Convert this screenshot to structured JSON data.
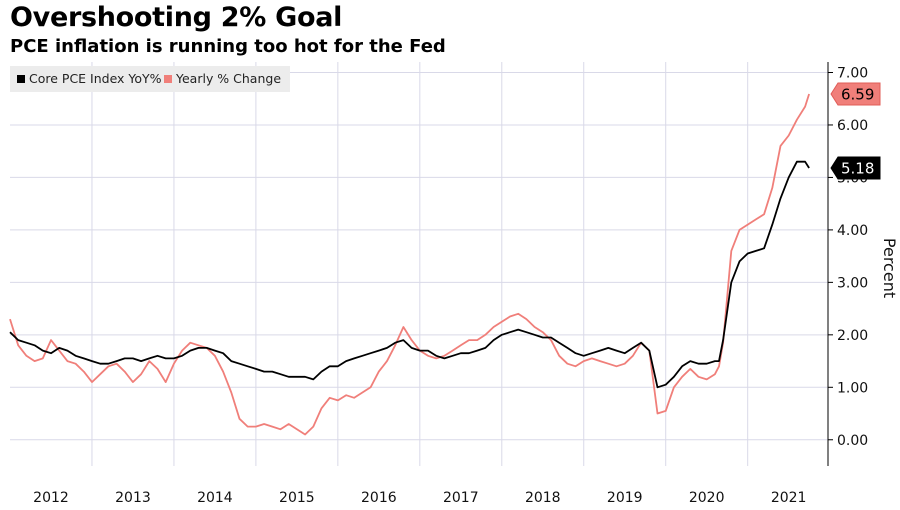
{
  "title": "Overshooting 2% Goal",
  "subtitle": "PCE inflation is running too hot for the Fed",
  "colors": {
    "core": "#000000",
    "yearly": "#f07f7a",
    "grid": "#d9d9e8",
    "legend_bg": "#ececec"
  },
  "chart_data": {
    "type": "line",
    "ylabel": "Percent",
    "ylim": [
      -0.5,
      7.2
    ],
    "yticks": [
      0,
      1,
      2,
      3,
      4,
      5,
      6,
      7
    ],
    "ytick_labels": [
      "0.00",
      "1.00",
      "2.00",
      "3.00",
      "4.00",
      "5.00",
      "6.00",
      "7.00"
    ],
    "xlim": [
      2012,
      2021.98
    ],
    "x_ticks": [
      2012,
      2013,
      2014,
      2015,
      2016,
      2017,
      2018,
      2019,
      2020,
      2021
    ],
    "x_tick_labels": [
      "2012",
      "2013",
      "2014",
      "2015",
      "2016",
      "2017",
      "2018",
      "2019",
      "2020",
      "2021"
    ],
    "legend_position": "top-left",
    "grid": true,
    "series": [
      {
        "name": "Core PCE Index YoY%",
        "last_label": "5.18",
        "points": [
          [
            2012.0,
            2.05
          ],
          [
            2012.1,
            1.9
          ],
          [
            2012.2,
            1.85
          ],
          [
            2012.3,
            1.8
          ],
          [
            2012.4,
            1.7
          ],
          [
            2012.5,
            1.65
          ],
          [
            2012.6,
            1.75
          ],
          [
            2012.7,
            1.7
          ],
          [
            2012.8,
            1.6
          ],
          [
            2012.9,
            1.55
          ],
          [
            2013.0,
            1.5
          ],
          [
            2013.1,
            1.45
          ],
          [
            2013.2,
            1.45
          ],
          [
            2013.3,
            1.5
          ],
          [
            2013.4,
            1.55
          ],
          [
            2013.5,
            1.55
          ],
          [
            2013.6,
            1.5
          ],
          [
            2013.7,
            1.55
          ],
          [
            2013.8,
            1.6
          ],
          [
            2013.9,
            1.55
          ],
          [
            2014.0,
            1.55
          ],
          [
            2014.1,
            1.6
          ],
          [
            2014.2,
            1.7
          ],
          [
            2014.3,
            1.75
          ],
          [
            2014.4,
            1.75
          ],
          [
            2014.5,
            1.7
          ],
          [
            2014.6,
            1.65
          ],
          [
            2014.7,
            1.5
          ],
          [
            2014.8,
            1.45
          ],
          [
            2014.9,
            1.4
          ],
          [
            2015.0,
            1.35
          ],
          [
            2015.1,
            1.3
          ],
          [
            2015.2,
            1.3
          ],
          [
            2015.3,
            1.25
          ],
          [
            2015.4,
            1.2
          ],
          [
            2015.5,
            1.2
          ],
          [
            2015.6,
            1.2
          ],
          [
            2015.7,
            1.15
          ],
          [
            2015.8,
            1.3
          ],
          [
            2015.9,
            1.4
          ],
          [
            2016.0,
            1.4
          ],
          [
            2016.1,
            1.5
          ],
          [
            2016.2,
            1.55
          ],
          [
            2016.3,
            1.6
          ],
          [
            2016.4,
            1.65
          ],
          [
            2016.5,
            1.7
          ],
          [
            2016.6,
            1.75
          ],
          [
            2016.7,
            1.85
          ],
          [
            2016.8,
            1.9
          ],
          [
            2016.9,
            1.75
          ],
          [
            2017.0,
            1.7
          ],
          [
            2017.1,
            1.7
          ],
          [
            2017.2,
            1.6
          ],
          [
            2017.3,
            1.55
          ],
          [
            2017.4,
            1.6
          ],
          [
            2017.5,
            1.65
          ],
          [
            2017.6,
            1.65
          ],
          [
            2017.7,
            1.7
          ],
          [
            2017.8,
            1.75
          ],
          [
            2017.9,
            1.9
          ],
          [
            2018.0,
            2.0
          ],
          [
            2018.1,
            2.05
          ],
          [
            2018.2,
            2.1
          ],
          [
            2018.3,
            2.05
          ],
          [
            2018.4,
            2.0
          ],
          [
            2018.5,
            1.95
          ],
          [
            2018.6,
            1.95
          ],
          [
            2018.7,
            1.85
          ],
          [
            2018.8,
            1.75
          ],
          [
            2018.9,
            1.65
          ],
          [
            2019.0,
            1.6
          ],
          [
            2019.1,
            1.65
          ],
          [
            2019.2,
            1.7
          ],
          [
            2019.3,
            1.75
          ],
          [
            2019.4,
            1.7
          ],
          [
            2019.5,
            1.65
          ],
          [
            2019.6,
            1.75
          ],
          [
            2019.7,
            1.85
          ],
          [
            2019.8,
            1.7
          ],
          [
            2019.9,
            1.0
          ],
          [
            2020.0,
            1.05
          ],
          [
            2020.1,
            1.2
          ],
          [
            2020.2,
            1.4
          ],
          [
            2020.3,
            1.5
          ],
          [
            2020.4,
            1.45
          ],
          [
            2020.5,
            1.45
          ],
          [
            2020.6,
            1.5
          ],
          [
            2020.65,
            1.5
          ],
          [
            2020.7,
            1.9
          ],
          [
            2020.8,
            3.0
          ],
          [
            2020.9,
            3.4
          ],
          [
            2021.0,
            3.55
          ],
          [
            2021.1,
            3.6
          ],
          [
            2021.2,
            3.65
          ],
          [
            2021.3,
            4.1
          ],
          [
            2021.4,
            4.6
          ],
          [
            2021.5,
            5.0
          ],
          [
            2021.6,
            5.3
          ],
          [
            2021.7,
            5.3
          ],
          [
            2021.75,
            5.18
          ]
        ]
      },
      {
        "name": "Yearly % Change",
        "last_label": "6.59",
        "points": [
          [
            2012.0,
            2.3
          ],
          [
            2012.1,
            1.8
          ],
          [
            2012.2,
            1.6
          ],
          [
            2012.3,
            1.5
          ],
          [
            2012.4,
            1.55
          ],
          [
            2012.5,
            1.9
          ],
          [
            2012.6,
            1.7
          ],
          [
            2012.7,
            1.5
          ],
          [
            2012.8,
            1.45
          ],
          [
            2012.9,
            1.3
          ],
          [
            2013.0,
            1.1
          ],
          [
            2013.1,
            1.25
          ],
          [
            2013.2,
            1.4
          ],
          [
            2013.3,
            1.45
          ],
          [
            2013.4,
            1.3
          ],
          [
            2013.5,
            1.1
          ],
          [
            2013.6,
            1.25
          ],
          [
            2013.7,
            1.5
          ],
          [
            2013.8,
            1.35
          ],
          [
            2013.9,
            1.1
          ],
          [
            2014.0,
            1.45
          ],
          [
            2014.1,
            1.7
          ],
          [
            2014.2,
            1.85
          ],
          [
            2014.3,
            1.8
          ],
          [
            2014.4,
            1.75
          ],
          [
            2014.5,
            1.6
          ],
          [
            2014.6,
            1.3
          ],
          [
            2014.7,
            0.9
          ],
          [
            2014.8,
            0.4
          ],
          [
            2014.9,
            0.25
          ],
          [
            2015.0,
            0.25
          ],
          [
            2015.1,
            0.3
          ],
          [
            2015.2,
            0.25
          ],
          [
            2015.3,
            0.2
          ],
          [
            2015.4,
            0.3
          ],
          [
            2015.5,
            0.2
          ],
          [
            2015.6,
            0.1
          ],
          [
            2015.7,
            0.25
          ],
          [
            2015.8,
            0.6
          ],
          [
            2015.9,
            0.8
          ],
          [
            2016.0,
            0.75
          ],
          [
            2016.1,
            0.85
          ],
          [
            2016.2,
            0.8
          ],
          [
            2016.3,
            0.9
          ],
          [
            2016.4,
            1.0
          ],
          [
            2016.5,
            1.3
          ],
          [
            2016.6,
            1.5
          ],
          [
            2016.7,
            1.8
          ],
          [
            2016.8,
            2.15
          ],
          [
            2016.9,
            1.9
          ],
          [
            2017.0,
            1.7
          ],
          [
            2017.1,
            1.6
          ],
          [
            2017.2,
            1.55
          ],
          [
            2017.3,
            1.6
          ],
          [
            2017.4,
            1.7
          ],
          [
            2017.5,
            1.8
          ],
          [
            2017.6,
            1.9
          ],
          [
            2017.7,
            1.9
          ],
          [
            2017.8,
            2.0
          ],
          [
            2017.9,
            2.15
          ],
          [
            2018.0,
            2.25
          ],
          [
            2018.1,
            2.35
          ],
          [
            2018.2,
            2.4
          ],
          [
            2018.3,
            2.3
          ],
          [
            2018.4,
            2.15
          ],
          [
            2018.5,
            2.05
          ],
          [
            2018.6,
            1.9
          ],
          [
            2018.7,
            1.6
          ],
          [
            2018.8,
            1.45
          ],
          [
            2018.9,
            1.4
          ],
          [
            2019.0,
            1.5
          ],
          [
            2019.1,
            1.55
          ],
          [
            2019.2,
            1.5
          ],
          [
            2019.3,
            1.45
          ],
          [
            2019.4,
            1.4
          ],
          [
            2019.5,
            1.45
          ],
          [
            2019.6,
            1.6
          ],
          [
            2019.7,
            1.85
          ],
          [
            2019.8,
            1.7
          ],
          [
            2019.9,
            0.5
          ],
          [
            2020.0,
            0.55
          ],
          [
            2020.1,
            1.0
          ],
          [
            2020.2,
            1.2
          ],
          [
            2020.3,
            1.35
          ],
          [
            2020.4,
            1.2
          ],
          [
            2020.5,
            1.15
          ],
          [
            2020.6,
            1.25
          ],
          [
            2020.65,
            1.4
          ],
          [
            2020.7,
            1.85
          ],
          [
            2020.8,
            3.6
          ],
          [
            2020.9,
            4.0
          ],
          [
            2021.0,
            4.1
          ],
          [
            2021.1,
            4.2
          ],
          [
            2021.2,
            4.3
          ],
          [
            2021.3,
            4.8
          ],
          [
            2021.4,
            5.6
          ],
          [
            2021.5,
            5.8
          ],
          [
            2021.6,
            6.1
          ],
          [
            2021.7,
            6.35
          ],
          [
            2021.75,
            6.59
          ]
        ]
      }
    ]
  }
}
